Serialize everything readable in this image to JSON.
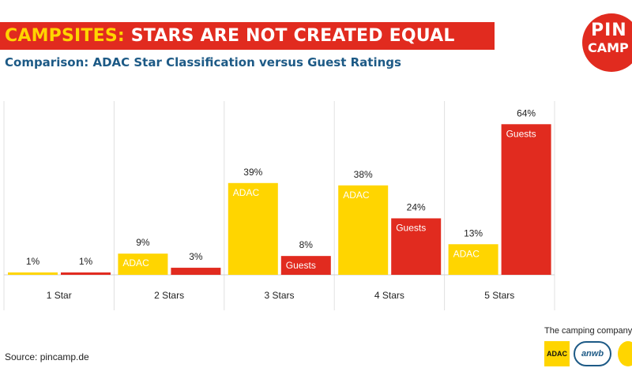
{
  "header": {
    "title_a": "CAMPSITES:",
    "title_b": "STARS ARE NOT CREATED EQUAL",
    "subtitle": "Comparison: ADAC Star Classification versus Guest Ratings",
    "logo_line1": "PIN",
    "logo_line2": "CAMP"
  },
  "footer": {
    "source": "Source: pincamp.de",
    "company": "The camping company",
    "partner_adac": "ADAC",
    "partner_anwb": "anwb"
  },
  "colors": {
    "adac": "#ffd500",
    "guests": "#e12b1f",
    "title_bg": "#e12b1f",
    "subtitle": "#1d5a86"
  },
  "chart_data": {
    "type": "bar",
    "title": "CAMPSITES: STARS ARE NOT CREATED EQUAL",
    "subtitle": "Comparison: ADAC Star Classification versus Guest Ratings",
    "categories": [
      "1 Star",
      "2 Stars",
      "3 Stars",
      "4 Stars",
      "5 Stars"
    ],
    "series": [
      {
        "name": "ADAC",
        "values": [
          1,
          9,
          39,
          38,
          13
        ],
        "color": "#ffd500"
      },
      {
        "name": "Guests",
        "values": [
          1,
          3,
          8,
          24,
          64
        ],
        "color": "#e12b1f"
      }
    ],
    "value_format": "{v}%",
    "ylim": [
      0,
      80
    ],
    "grid": false,
    "legend": "none"
  }
}
